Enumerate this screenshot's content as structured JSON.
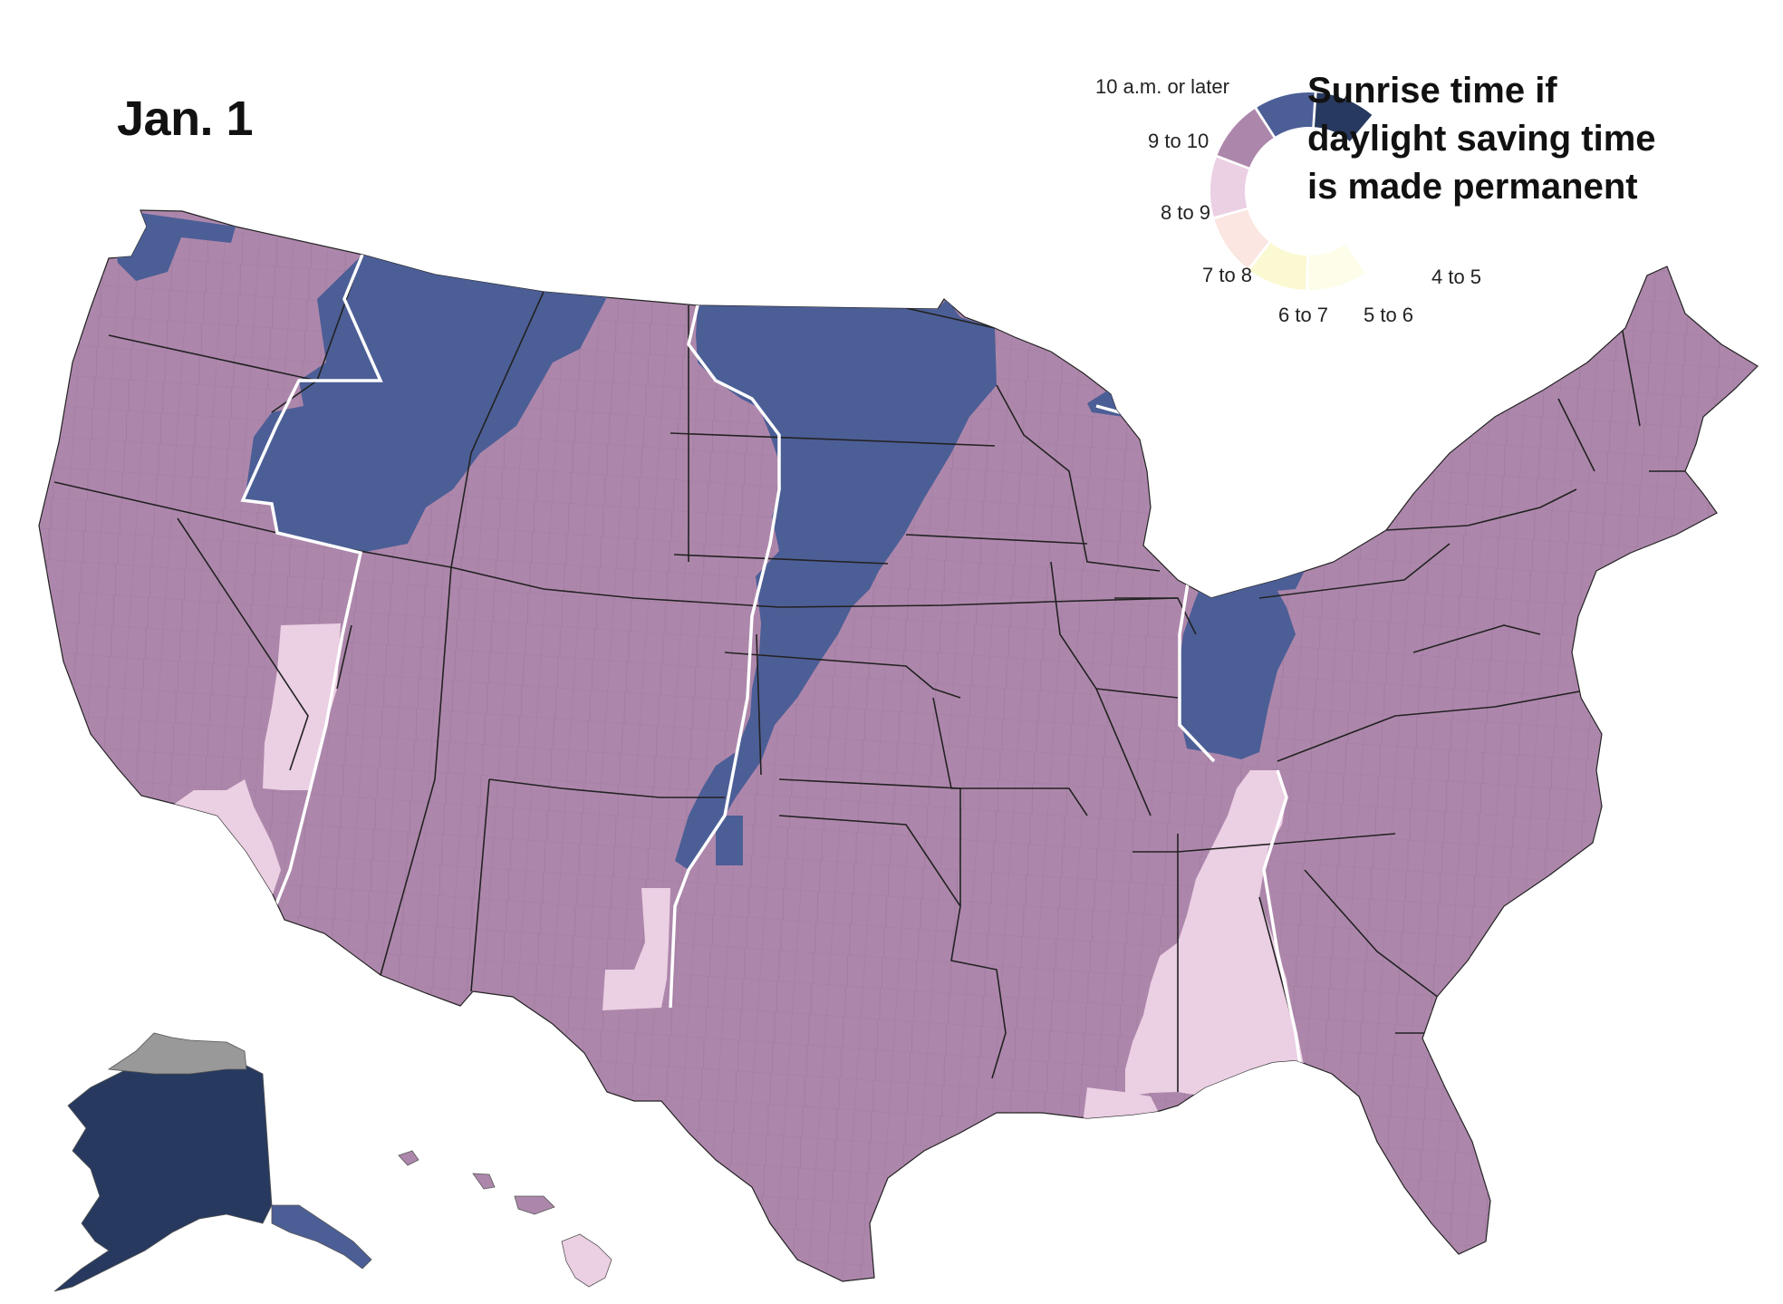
{
  "title": "Jan. 1",
  "legend": {
    "title_lines": [
      "Sunrise time if",
      "daylight saving time",
      "is made permanent"
    ],
    "bins": [
      {
        "label": "10 a.m. or later",
        "color": "#27395e"
      },
      {
        "label": "9 to 10",
        "color": "#4c5e96"
      },
      {
        "label": "8 to 9",
        "color": "#ad87ab"
      },
      {
        "label": "7 to 8",
        "color": "#ebcfe3"
      },
      {
        "label": "6 to 7",
        "color": "#fbe6e1"
      },
      {
        "label": "5 to 6",
        "color": "#fbf9d2"
      },
      {
        "label": "4 to 5",
        "color": "#fdfde9"
      }
    ]
  },
  "map": {
    "no_data_color": "#999999",
    "time_zone_border_color": "#ffffff",
    "county_line_color": "#966f95",
    "state_line_color": "#222222",
    "regions": [
      {
        "name": "contiguous-us",
        "bin": "8 to 9"
      },
      {
        "name": "washington-northwest",
        "bin": "9 to 10"
      },
      {
        "name": "montana-idaho-band",
        "bin": "9 to 10"
      },
      {
        "name": "dakotas-minnesota-band",
        "bin": "9 to 10"
      },
      {
        "name": "west-kansas-strip",
        "bin": "9 to 10"
      },
      {
        "name": "michigan-upper-peninsula",
        "bin": "9 to 10"
      },
      {
        "name": "michigan-indiana",
        "bin": "9 to 10"
      },
      {
        "name": "southern-california",
        "bin": "7 to 8"
      },
      {
        "name": "nevada-east-strip",
        "bin": "7 to 8"
      },
      {
        "name": "west-texas-strip",
        "bin": "7 to 8"
      },
      {
        "name": "alabama-mississippi",
        "bin": "7 to 8"
      },
      {
        "name": "louisiana-coast",
        "bin": "7 to 8"
      },
      {
        "name": "alaska-main",
        "bin": "10 a.m. or later"
      },
      {
        "name": "alaska-panhandle",
        "bin": "9 to 10"
      },
      {
        "name": "alaska-north-slope",
        "bin": "no data"
      },
      {
        "name": "hawaii-big-island",
        "bin": "7 to 8"
      },
      {
        "name": "hawaii-islands",
        "bin": "8 to 9"
      }
    ]
  }
}
